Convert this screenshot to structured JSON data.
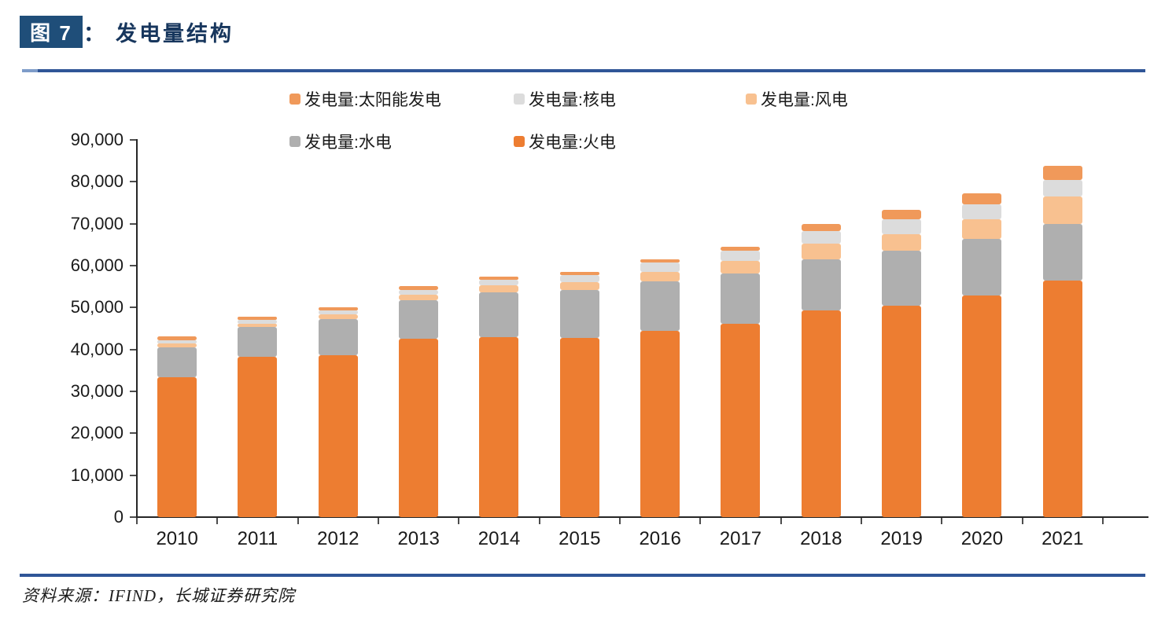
{
  "header": {
    "figure_tag": "图 7",
    "colon": "：",
    "title": "发电量结构"
  },
  "legend": {
    "rows": [
      [
        "发电量:太阳能发电",
        "发电量:核电",
        "发电量:风电"
      ],
      [
        "发电量:水电",
        "发电量:火电"
      ]
    ]
  },
  "chart_data": {
    "type": "bar",
    "stacked": true,
    "title": "发电量结构",
    "xlabel": "",
    "ylabel": "",
    "ylim": [
      0,
      90000
    ],
    "ytick_step": 10000,
    "ytick_labels_top_to_bottom": [
      "90,000",
      "80,000",
      "70,000",
      "60,000",
      "50,000",
      "40,000",
      "30,000",
      "20,000",
      "10,000",
      "0"
    ],
    "grid": false,
    "legend_position": "top",
    "categories": [
      "2010",
      "2011",
      "2012",
      "2013",
      "2014",
      "2015",
      "2016",
      "2017",
      "2018",
      "2019",
      "2020",
      "2021"
    ],
    "series": [
      {
        "key": "thermal",
        "name": "发电量:火电",
        "color": "#ED7D31",
        "values": [
          33319,
          38337,
          38554,
          42470,
          43030,
          42842,
          44371,
          46115,
          49231,
          50465,
          52799,
          56463
        ]
      },
      {
        "key": "hydro",
        "name": "发电量:水电",
        "color": "#AFAFAF",
        "values": [
          7222,
          6989,
          8721,
          9203,
          10643,
          11303,
          11815,
          11979,
          12329,
          13044,
          13553,
          13401
        ]
      },
      {
        "key": "wind",
        "name": "发电量:风电",
        "color": "#F8C190",
        "values": [
          494,
          741,
          1030,
          1412,
          1563,
          1857,
          2409,
          3046,
          3660,
          4057,
          4665,
          6556
        ]
      },
      {
        "key": "nuclear",
        "name": "发电量:核电",
        "color": "#DCDCDC",
        "values": [
          747,
          872,
          973,
          1116,
          1332,
          1714,
          2132,
          2481,
          2944,
          3487,
          3662,
          4075
        ]
      },
      {
        "key": "solar",
        "name": "发电量:太阳能发电",
        "color": "#F0995A",
        "values": [
          7,
          26,
          36,
          84,
          235,
          395,
          665,
          967,
          1775,
          2240,
          2611,
          3259
        ]
      }
    ]
  },
  "source": {
    "text": "资料来源：IFIND，长城证券研究院"
  }
}
